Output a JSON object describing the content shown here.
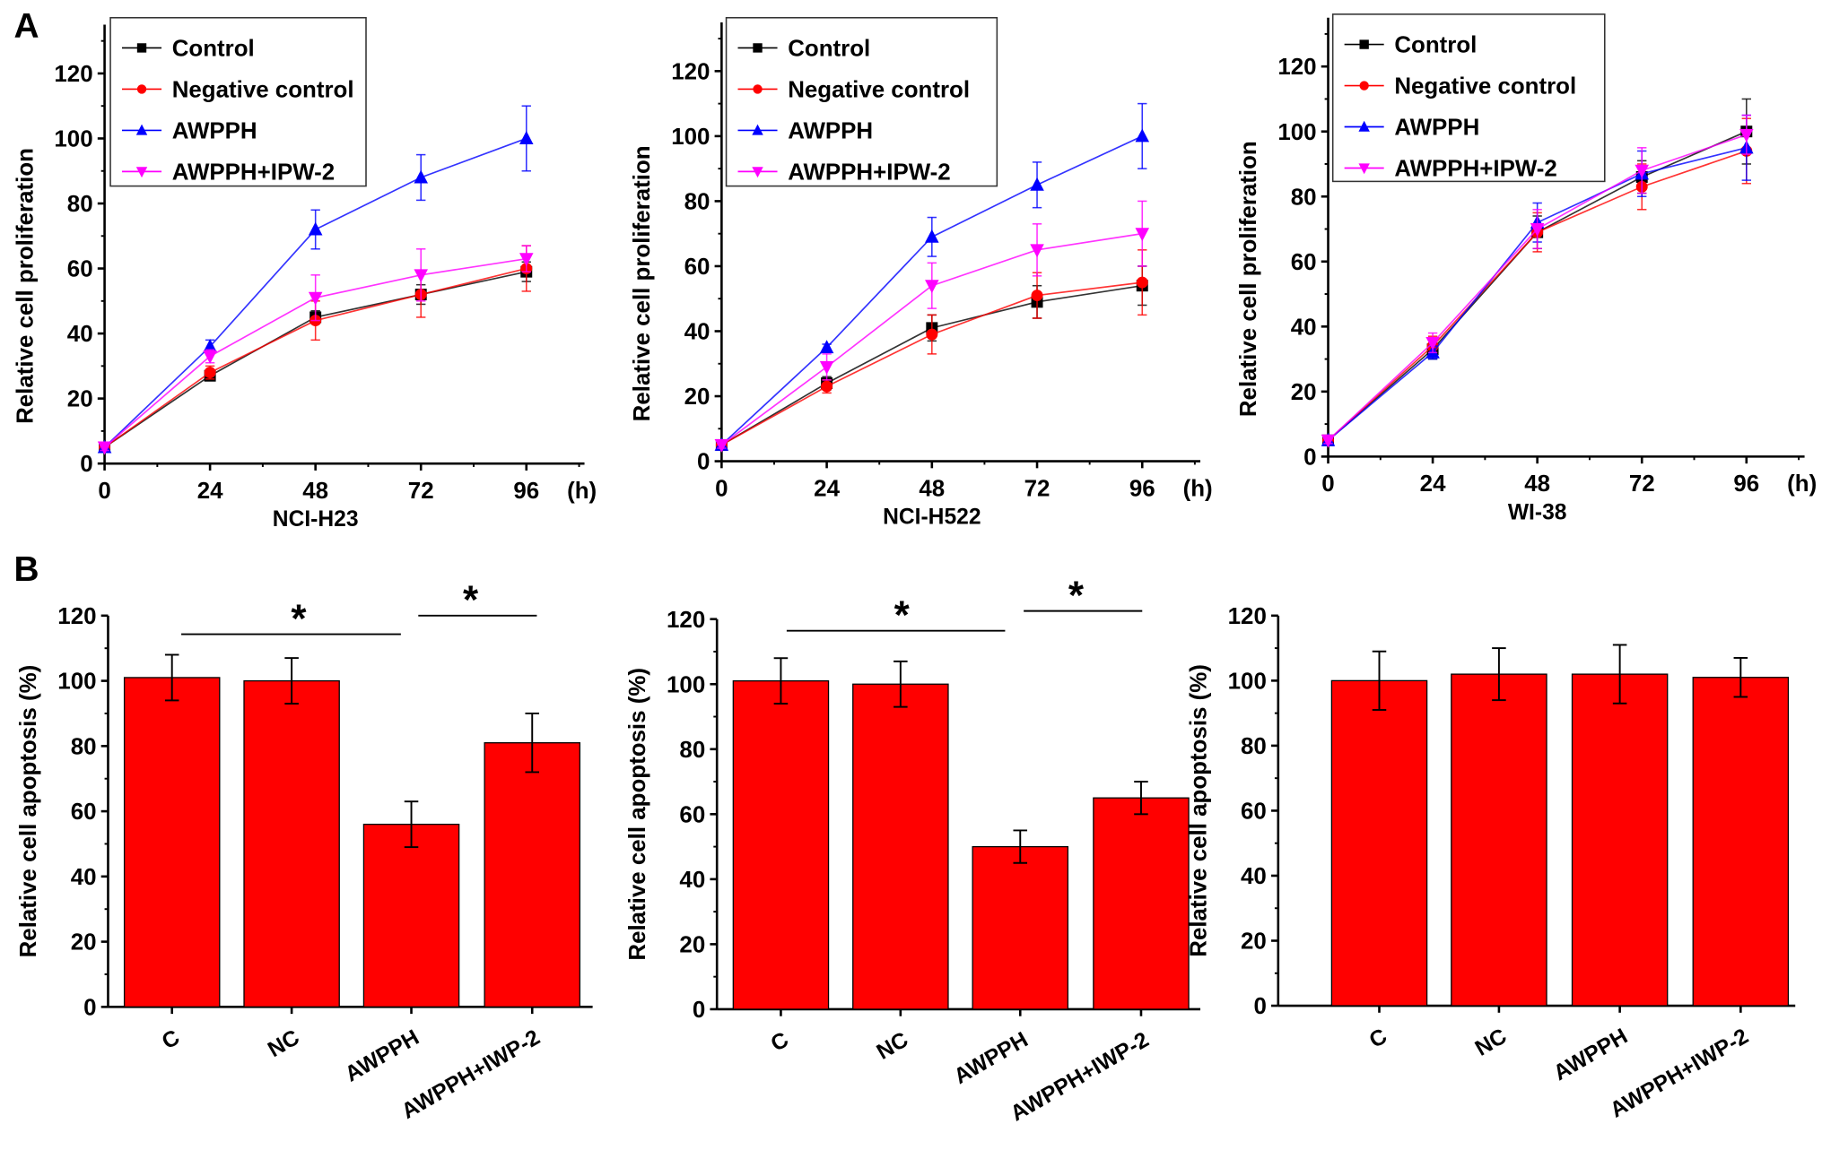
{
  "panel_labels": [
    "A",
    "B"
  ],
  "colors": {
    "Control": "#000000",
    "Negative control": "#ff0000",
    "AWPPH": "#0000ff",
    "AWPPH+IPW-2": "#ff00ff",
    "bar": "#ff0000"
  },
  "chart_data": [
    {
      "type": "line",
      "xlabel": "NCI-H23",
      "x_unit": "(h)",
      "ylabel": "Relative cell proliferation",
      "x": [
        0,
        24,
        48,
        72,
        96
      ],
      "xlim": [
        0,
        108
      ],
      "ylim": [
        0,
        135
      ],
      "yticks": [
        0,
        20,
        40,
        60,
        80,
        100,
        120
      ],
      "legend": "top-left",
      "series": [
        {
          "name": "Control",
          "marker": "square",
          "values": [
            5,
            27,
            45,
            52,
            59
          ],
          "errors": [
            1,
            1,
            2,
            3,
            3
          ]
        },
        {
          "name": "Negative control",
          "marker": "circle",
          "values": [
            5,
            28,
            44,
            52,
            60
          ],
          "errors": [
            1,
            2,
            6,
            7,
            7
          ]
        },
        {
          "name": "AWPPH",
          "marker": "triangle-up",
          "values": [
            5,
            36,
            72,
            88,
            100
          ],
          "errors": [
            1,
            2,
            6,
            7,
            10
          ]
        },
        {
          "name": "AWPPH+IPW-2",
          "marker": "triangle-down",
          "values": [
            5,
            33,
            51,
            58,
            63
          ],
          "errors": [
            1,
            2,
            7,
            8,
            4
          ]
        }
      ]
    },
    {
      "type": "line",
      "xlabel": "NCI-H522",
      "x_unit": "(h)",
      "ylabel": "Relative cell proliferation",
      "x": [
        0,
        24,
        48,
        72,
        96
      ],
      "xlim": [
        0,
        108
      ],
      "ylim": [
        0,
        135
      ],
      "yticks": [
        0,
        20,
        40,
        60,
        80,
        100,
        120
      ],
      "legend": "top-left",
      "series": [
        {
          "name": "Control",
          "marker": "square",
          "values": [
            5,
            24,
            41,
            49,
            54
          ],
          "errors": [
            1,
            2,
            4,
            5,
            6
          ]
        },
        {
          "name": "Negative control",
          "marker": "circle",
          "values": [
            5,
            23,
            39,
            51,
            55
          ],
          "errors": [
            1,
            2,
            6,
            7,
            10
          ]
        },
        {
          "name": "AWPPH",
          "marker": "triangle-up",
          "values": [
            5,
            35,
            69,
            85,
            100
          ],
          "errors": [
            1,
            1,
            6,
            7,
            10
          ]
        },
        {
          "name": "AWPPH+IPW-2",
          "marker": "triangle-down",
          "values": [
            5,
            29,
            54,
            65,
            70
          ],
          "errors": [
            1,
            4,
            7,
            8,
            10
          ]
        }
      ]
    },
    {
      "type": "line",
      "xlabel": "WI-38",
      "x_unit": "(h)",
      "ylabel": "Relative cell proliferation",
      "x": [
        0,
        24,
        48,
        72,
        96
      ],
      "xlim": [
        0,
        108
      ],
      "ylim": [
        0,
        135
      ],
      "yticks": [
        0,
        20,
        40,
        60,
        80,
        100,
        120
      ],
      "legend": "top-left",
      "series": [
        {
          "name": "Control",
          "marker": "square",
          "values": [
            5,
            33,
            69,
            86,
            100
          ],
          "errors": [
            1,
            3,
            5,
            5,
            10
          ]
        },
        {
          "name": "Negative control",
          "marker": "circle",
          "values": [
            5,
            34,
            69,
            83,
            94
          ],
          "errors": [
            1,
            3,
            6,
            7,
            10
          ]
        },
        {
          "name": "AWPPH",
          "marker": "triangle-up",
          "values": [
            5,
            32,
            72,
            87,
            95
          ],
          "errors": [
            1,
            2,
            6,
            7,
            10
          ]
        },
        {
          "name": "AWPPH+IPW-2",
          "marker": "triangle-down",
          "values": [
            5,
            35,
            70,
            88,
            99
          ],
          "errors": [
            1,
            3,
            6,
            7,
            6
          ]
        }
      ]
    },
    {
      "type": "bar",
      "ylabel": "Relative cell apoptosis (%)",
      "categories": [
        "C",
        "NC",
        "AWPPH",
        "AWPPH+IWP-2"
      ],
      "values": [
        101,
        100,
        56,
        81
      ],
      "errors": [
        7,
        7,
        7,
        9
      ],
      "ylim": [
        0,
        120
      ],
      "yticks": [
        0,
        20,
        40,
        60,
        80,
        100,
        120
      ],
      "significance": [
        {
          "from": 0,
          "to": 2,
          "label": "*"
        },
        {
          "from": 2,
          "to": 3,
          "label": "*"
        }
      ]
    },
    {
      "type": "bar",
      "ylabel": "Relative cell apoptosis (%)",
      "categories": [
        "C",
        "NC",
        "AWPPH",
        "AWPPH+IWP-2"
      ],
      "values": [
        101,
        100,
        50,
        65
      ],
      "errors": [
        7,
        7,
        5,
        5
      ],
      "ylim": [
        0,
        120
      ],
      "yticks": [
        0,
        20,
        40,
        60,
        80,
        100,
        120
      ],
      "significance": [
        {
          "from": 0,
          "to": 2,
          "label": "*"
        },
        {
          "from": 2,
          "to": 3,
          "label": "*"
        }
      ]
    },
    {
      "type": "bar",
      "ylabel": "Relative cell apoptosis (%)",
      "categories": [
        "C",
        "NC",
        "AWPPH",
        "AWPPH+IWP-2"
      ],
      "values": [
        100,
        102,
        102,
        101
      ],
      "errors": [
        9,
        8,
        9,
        6
      ],
      "ylim": [
        0,
        120
      ],
      "yticks": [
        0,
        20,
        40,
        60,
        80,
        100,
        120
      ],
      "significance": []
    }
  ]
}
